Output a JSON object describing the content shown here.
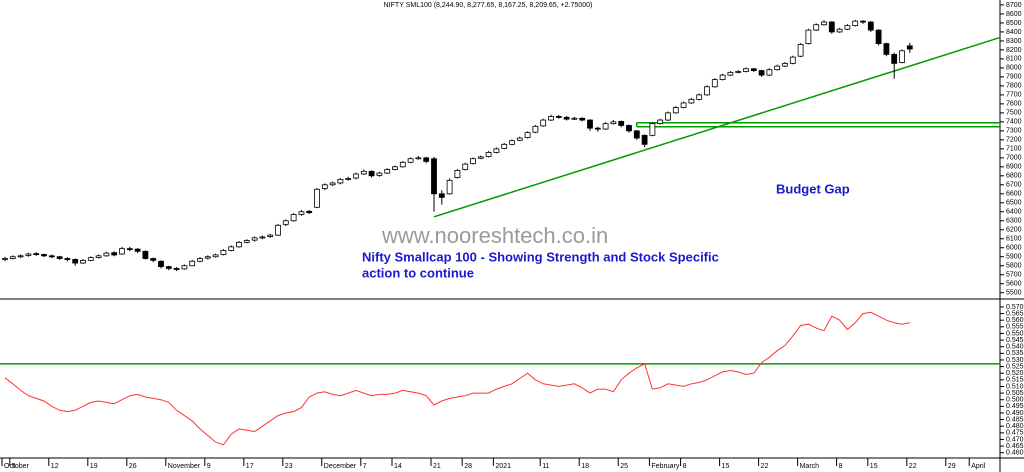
{
  "chart_data": {
    "type": "candlestick",
    "title": "NIFTY SML100 (8,244.90, 8,277.65, 8,167.25, 8,209.65, +2.75000)",
    "annotations": [
      "www.nooreshtech.co.in",
      "Nifty Smallcap 100 - Showing Strength and Stock Specific",
      "action to continue",
      "Budget Gap"
    ],
    "categories": [
      "October",
      "5",
      null,
      null,
      null,
      null,
      "12",
      null,
      null,
      null,
      null,
      "19",
      null,
      null,
      null,
      null,
      "26",
      null,
      null,
      null,
      null,
      "November",
      null,
      null,
      null,
      null,
      "9",
      null,
      null,
      null,
      null,
      "17",
      null,
      null,
      null,
      null,
      "23",
      null,
      null,
      null,
      null,
      "December",
      null,
      null,
      null,
      null,
      "7",
      null,
      null,
      null,
      "14",
      null,
      null,
      null,
      null,
      "21",
      null,
      null,
      null,
      "28",
      null,
      null,
      null,
      "2021",
      null,
      null,
      null,
      null,
      null,
      "11",
      null,
      null,
      null,
      null,
      "18",
      null,
      null,
      null,
      null,
      "25",
      null,
      null,
      null,
      "February",
      null,
      null,
      null,
      "8",
      null,
      null,
      null,
      null,
      "15",
      null,
      null,
      null,
      null,
      "22",
      null,
      null,
      null,
      null,
      "March",
      null,
      null,
      null,
      null,
      "8",
      null,
      null,
      null,
      "15",
      null,
      null,
      null,
      null,
      "22",
      null,
      null,
      null,
      null,
      "29",
      null,
      null,
      "April"
    ],
    "candles": [
      [
        5870,
        5900,
        5850,
        5880
      ],
      [
        5880,
        5915,
        5870,
        5900
      ],
      [
        5900,
        5925,
        5885,
        5910
      ],
      [
        5915,
        5945,
        5900,
        5930
      ],
      [
        5935,
        5950,
        5910,
        5925
      ],
      [
        5925,
        5935,
        5895,
        5910
      ],
      [
        5910,
        5925,
        5885,
        5900
      ],
      [
        5900,
        5910,
        5865,
        5880
      ],
      [
        5880,
        5895,
        5850,
        5870
      ],
      [
        5870,
        5880,
        5800,
        5830
      ],
      [
        5830,
        5875,
        5820,
        5860
      ],
      [
        5860,
        5905,
        5850,
        5890
      ],
      [
        5890,
        5925,
        5880,
        5910
      ],
      [
        5910,
        5955,
        5900,
        5940
      ],
      [
        5945,
        5960,
        5905,
        5920
      ],
      [
        5930,
        6010,
        5920,
        5990
      ],
      [
        5990,
        6010,
        5960,
        5980
      ],
      [
        5985,
        5995,
        5940,
        5960
      ],
      [
        5960,
        5970,
        5870,
        5880
      ],
      [
        5880,
        5890,
        5840,
        5860
      ],
      [
        5850,
        5860,
        5770,
        5790
      ],
      [
        5790,
        5800,
        5750,
        5770
      ],
      [
        5770,
        5785,
        5740,
        5760
      ],
      [
        5765,
        5815,
        5755,
        5800
      ],
      [
        5800,
        5865,
        5795,
        5850
      ],
      [
        5850,
        5895,
        5840,
        5880
      ],
      [
        5885,
        5915,
        5870,
        5900
      ],
      [
        5900,
        5935,
        5890,
        5920
      ],
      [
        5925,
        5985,
        5915,
        5970
      ],
      [
        5970,
        6025,
        5960,
        6010
      ],
      [
        6010,
        6075,
        6000,
        6060
      ],
      [
        6060,
        6095,
        6050,
        6080
      ],
      [
        6085,
        6125,
        6070,
        6110
      ],
      [
        6110,
        6135,
        6095,
        6120
      ],
      [
        6125,
        6155,
        6110,
        6140
      ],
      [
        6140,
        6265,
        6130,
        6250
      ],
      [
        6260,
        6315,
        6240,
        6300
      ],
      [
        6300,
        6385,
        6290,
        6370
      ],
      [
        6370,
        6420,
        6355,
        6400
      ],
      [
        6405,
        6420,
        6375,
        6390
      ],
      [
        6450,
        6665,
        6440,
        6650
      ],
      [
        6660,
        6715,
        6640,
        6700
      ],
      [
        6700,
        6735,
        6685,
        6720
      ],
      [
        6720,
        6775,
        6705,
        6760
      ],
      [
        6765,
        6790,
        6745,
        6770
      ],
      [
        6775,
        6835,
        6760,
        6820
      ],
      [
        6820,
        6870,
        6810,
        6850
      ],
      [
        6850,
        6860,
        6780,
        6800
      ],
      [
        6805,
        6845,
        6790,
        6830
      ],
      [
        6830,
        6885,
        6820,
        6870
      ],
      [
        6870,
        6915,
        6860,
        6900
      ],
      [
        6900,
        6965,
        6890,
        6950
      ],
      [
        6950,
        7005,
        6940,
        6990
      ],
      [
        6995,
        7020,
        6980,
        7000
      ],
      [
        7000,
        7010,
        6940,
        6960
      ],
      [
        6990,
        7010,
        6400,
        6600
      ],
      [
        6600,
        6640,
        6480,
        6560
      ],
      [
        6600,
        6770,
        6590,
        6750
      ],
      [
        6780,
        6875,
        6770,
        6860
      ],
      [
        6870,
        6945,
        6860,
        6930
      ],
      [
        6935,
        7005,
        6925,
        6990
      ],
      [
        6995,
        7025,
        6985,
        7010
      ],
      [
        7015,
        7075,
        7005,
        7060
      ],
      [
        7060,
        7115,
        7050,
        7100
      ],
      [
        7105,
        7165,
        7095,
        7150
      ],
      [
        7150,
        7205,
        7140,
        7190
      ],
      [
        7195,
        7235,
        7185,
        7220
      ],
      [
        7225,
        7295,
        7215,
        7280
      ],
      [
        7285,
        7365,
        7275,
        7350
      ],
      [
        7355,
        7435,
        7345,
        7420
      ],
      [
        7420,
        7480,
        7410,
        7460
      ],
      [
        7460,
        7475,
        7435,
        7450
      ],
      [
        7450,
        7465,
        7415,
        7430
      ],
      [
        7430,
        7455,
        7420,
        7440
      ],
      [
        7440,
        7450,
        7405,
        7420
      ],
      [
        7420,
        7430,
        7300,
        7330
      ],
      [
        7330,
        7345,
        7290,
        7320
      ],
      [
        7320,
        7395,
        7310,
        7380
      ],
      [
        7380,
        7420,
        7370,
        7400
      ],
      [
        7405,
        7415,
        7340,
        7360
      ],
      [
        7360,
        7370,
        7280,
        7300
      ],
      [
        7300,
        7310,
        7200,
        7220
      ],
      [
        7250,
        7260,
        7120,
        7150
      ],
      [
        7250,
        7395,
        7240,
        7380
      ],
      [
        7380,
        7435,
        7370,
        7420
      ],
      [
        7420,
        7515,
        7410,
        7500
      ],
      [
        7500,
        7575,
        7490,
        7560
      ],
      [
        7560,
        7625,
        7550,
        7610
      ],
      [
        7610,
        7665,
        7600,
        7650
      ],
      [
        7650,
        7715,
        7640,
        7700
      ],
      [
        7700,
        7805,
        7690,
        7790
      ],
      [
        7790,
        7885,
        7780,
        7870
      ],
      [
        7870,
        7935,
        7860,
        7920
      ],
      [
        7920,
        7965,
        7910,
        7950
      ],
      [
        7950,
        7975,
        7940,
        7960
      ],
      [
        7960,
        8005,
        7950,
        7990
      ],
      [
        7990,
        8000,
        7955,
        7970
      ],
      [
        7970,
        7980,
        7900,
        7920
      ],
      [
        7920,
        7995,
        7910,
        7980
      ],
      [
        7980,
        8035,
        7970,
        8020
      ],
      [
        8020,
        8065,
        8010,
        8050
      ],
      [
        8050,
        8135,
        8040,
        8120
      ],
      [
        8130,
        8275,
        8120,
        8260
      ],
      [
        8270,
        8435,
        8260,
        8420
      ],
      [
        8420,
        8495,
        8410,
        8480
      ],
      [
        8480,
        8530,
        8470,
        8510
      ],
      [
        8510,
        8520,
        8380,
        8400
      ],
      [
        8400,
        8445,
        8390,
        8430
      ],
      [
        8430,
        8485,
        8420,
        8470
      ],
      [
        8470,
        8535,
        8460,
        8520
      ],
      [
        8520,
        8530,
        8490,
        8510
      ],
      [
        8510,
        8520,
        8400,
        8420
      ],
      [
        8420,
        8430,
        8250,
        8270
      ],
      [
        8270,
        8280,
        8130,
        8150
      ],
      [
        8150,
        8170,
        7880,
        8050
      ],
      [
        8060,
        8205,
        8050,
        8190
      ],
      [
        8244.9,
        8277.65,
        8167.25,
        8209.65
      ],
      null,
      null,
      null,
      null,
      null,
      null,
      null,
      null
    ],
    "color_up": "#ffffff",
    "color_down": "#000000",
    "ylim": [
      5430,
      8755
    ],
    "yticks": [
      8700,
      8600,
      8500,
      8400,
      8300,
      8200,
      8100,
      8000,
      7900,
      7800,
      7700,
      7600,
      7500,
      7400,
      7300,
      7200,
      7100,
      7000,
      6900,
      6800,
      6700,
      6600,
      6500,
      6400,
      6300,
      6200,
      6100,
      6000,
      5900,
      5800,
      5700,
      5600,
      5500
    ],
    "trendline": {
      "x": [
        55,
        128
      ],
      "y": [
        6344,
        8350
      ],
      "color": "#009900"
    },
    "gap": {
      "x": [
        81,
        128
      ],
      "y": [
        7390,
        7345
      ],
      "color": "#009900"
    },
    "ratio": {
      "type": "line",
      "color": "#ff3333",
      "values": [
        0.5165,
        0.512,
        0.507,
        0.503,
        0.501,
        0.499,
        0.495,
        0.492,
        0.491,
        0.492,
        0.495,
        0.498,
        0.499,
        0.498,
        0.497,
        0.5,
        0.503,
        0.504,
        0.502,
        0.501,
        0.5,
        0.498,
        0.492,
        0.488,
        0.484,
        0.478,
        0.473,
        0.468,
        0.466,
        0.474,
        0.478,
        0.477,
        0.476,
        0.48,
        0.484,
        0.488,
        0.49,
        0.491,
        0.494,
        0.502,
        0.505,
        0.506,
        0.504,
        0.503,
        0.505,
        0.507,
        0.505,
        0.503,
        0.504,
        0.504,
        0.505,
        0.507,
        0.506,
        0.505,
        0.503,
        0.496,
        0.499,
        0.501,
        0.502,
        0.503,
        0.505,
        0.505,
        0.505,
        0.508,
        0.51,
        0.512,
        0.516,
        0.52,
        0.515,
        0.512,
        0.511,
        0.51,
        0.511,
        0.512,
        0.509,
        0.505,
        0.508,
        0.508,
        0.506,
        0.515,
        0.52,
        0.524,
        0.527,
        0.508,
        0.509,
        0.512,
        0.511,
        0.51,
        0.512,
        0.513,
        0.515,
        0.518,
        0.521,
        0.522,
        0.521,
        0.519,
        0.52,
        0.528,
        0.532,
        0.537,
        0.541,
        0.548,
        0.556,
        0.557,
        0.554,
        0.552,
        0.563,
        0.56,
        0.553,
        0.558,
        0.565,
        0.566,
        0.563,
        0.56,
        0.558,
        0.557,
        0.558,
        null,
        null,
        null,
        null,
        null,
        null,
        null,
        null
      ],
      "ylim": [
        0.456,
        0.576
      ],
      "yticks": [
        {
          "value": 0.57,
          "label": "0.570"
        },
        {
          "value": 0.565,
          "label": "0.565"
        },
        {
          "value": 0.56,
          "label": "0.560"
        },
        {
          "value": 0.555,
          "label": "0.555"
        },
        {
          "value": 0.55,
          "label": "0.550"
        },
        {
          "value": 0.545,
          "label": "0.545"
        },
        {
          "value": 0.54,
          "label": "0.540"
        },
        {
          "value": 0.535,
          "label": "0.535"
        },
        {
          "value": 0.53,
          "label": "0.530"
        },
        {
          "value": 0.525,
          "label": "0.525"
        },
        {
          "value": 0.52,
          "label": "0.520"
        },
        {
          "value": 0.515,
          "label": "0.515"
        },
        {
          "value": 0.51,
          "label": "0.510"
        },
        {
          "value": 0.505,
          "label": "0.505"
        },
        {
          "value": 0.5,
          "label": "0.500"
        },
        {
          "value": 0.495,
          "label": "0.495"
        },
        {
          "value": 0.49,
          "label": "0.490"
        },
        {
          "value": 0.485,
          "label": "0.485"
        },
        {
          "value": 0.48,
          "label": "0.480"
        },
        {
          "value": 0.475,
          "label": "0.475"
        },
        {
          "value": 0.47,
          "label": "0.470"
        },
        {
          "value": 0.465,
          "label": "0.465"
        },
        {
          "value": 0.46,
          "label": "0.460"
        }
      ],
      "level": 0.527,
      "level_color": "#009900"
    }
  }
}
